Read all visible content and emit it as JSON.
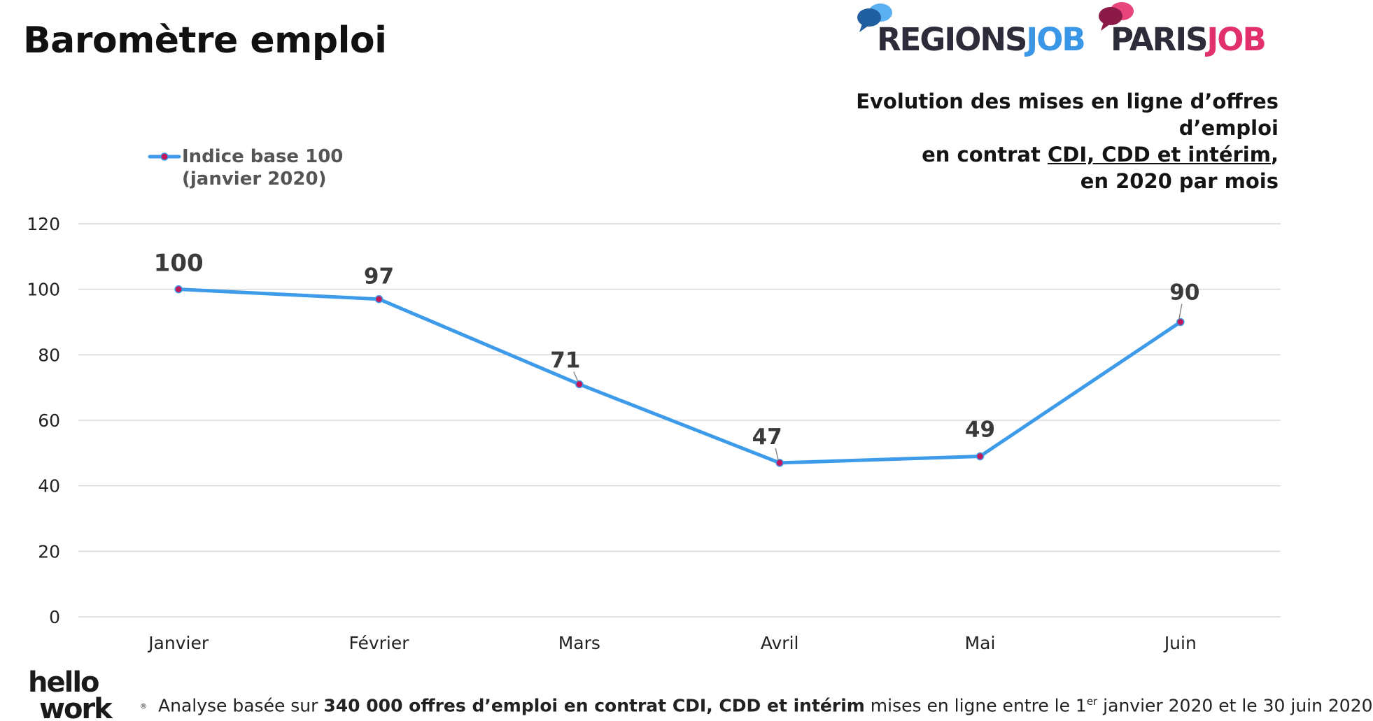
{
  "page": {
    "title": "Baromètre emploi",
    "subtitle_line1": "Evolution des mises en ligne d’offres d’emploi",
    "subtitle_line2_prefix": "en contrat ",
    "subtitle_line2_underlined": "CDI, CDD et intérim",
    "subtitle_line2_suffix": ",",
    "subtitle_line3": "en 2020 par mois"
  },
  "logos": {
    "regions_part1": "REGIONS",
    "regions_part2": "JOB",
    "paris_part1": "PARIS",
    "paris_part2": "JOB",
    "hellowork_line1": "hello",
    "hellowork_line2": "work",
    "hellowork_mark": "®"
  },
  "footer": {
    "text_before": "Analyse basée sur ",
    "text_bold": "340 000 offres d’emploi en contrat CDI, CDD et intérim",
    "text_middle": " mises en ligne entre le 1",
    "sup": "er",
    "text_end": " janvier 2020 et le 30 juin 2020"
  },
  "colors": {
    "line": "#3d9be9",
    "marker": "#c2185b",
    "grid": "#d9d9d9",
    "regions_blue": "#3a96e6",
    "paris_pink": "#e1306c",
    "dark": "#2c2c3a"
  },
  "chart_data": {
    "type": "line",
    "categories": [
      "Janvier",
      "Février",
      "Mars",
      "Avril",
      "Mai",
      "Juin"
    ],
    "series": [
      {
        "name": "Indice base 100 (janvier 2020)",
        "legend_line1": "Indice base 100",
        "legend_line2": "(janvier 2020)",
        "values": [
          100,
          97,
          71,
          47,
          49,
          90
        ]
      }
    ],
    "data_labels": [
      "100",
      "97",
      "71",
      "47",
      "49",
      "90"
    ],
    "yticks": [
      0,
      20,
      40,
      60,
      80,
      100,
      120
    ],
    "ylim": [
      0,
      120
    ],
    "grid": true,
    "legend_position": "top-left",
    "xlabel": "",
    "ylabel": ""
  }
}
